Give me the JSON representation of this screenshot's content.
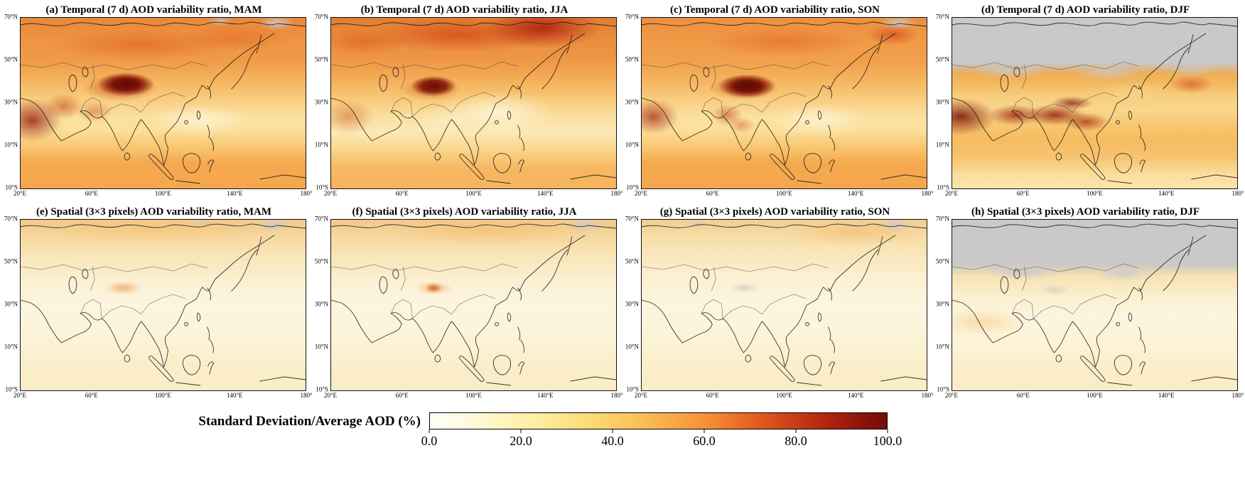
{
  "figure": {
    "description": "Eight-panel seasonal map figure of AOD variability ratio over Asia with a shared horizontal colorbar"
  },
  "axes": {
    "yticks": [
      "70°N",
      "50°N",
      "30°N",
      "10°N",
      "10°S"
    ],
    "xticks": [
      "20°E",
      "60°E",
      "100°E",
      "140°E",
      "180°"
    ]
  },
  "panels": [
    {
      "key": "a",
      "title": "(a) Temporal (7 d) AOD variability ratio, MAM"
    },
    {
      "key": "b",
      "title": "(b) Temporal (7 d) AOD variability ratio, JJA"
    },
    {
      "key": "c",
      "title": "(c) Temporal (7 d) AOD variability ratio, SON"
    },
    {
      "key": "d",
      "title": "(d) Temporal (7 d) AOD variability ratio, DJF"
    },
    {
      "key": "e",
      "title": "(e) Spatial (3×3 pixels) AOD variability ratio, MAM"
    },
    {
      "key": "f",
      "title": "(f) Spatial (3×3 pixels) AOD variability ratio, JJA"
    },
    {
      "key": "g",
      "title": "(g) Spatial (3×3 pixels) AOD variability ratio, SON"
    },
    {
      "key": "h",
      "title": "(h) Spatial (3×3 pixels) AOD variability ratio, DJF"
    }
  ],
  "colorbar": {
    "label": "Standard Deviation/Average AOD (%)",
    "ticks": [
      "0.0",
      "20.0",
      "40.0",
      "60.0",
      "80.0",
      "100.0"
    ],
    "colors": [
      "#fffef6",
      "#fef0ae",
      "#fcd871",
      "#f9ad47",
      "#f07529",
      "#bb2e10",
      "#760d08"
    ],
    "nodata_color": "#c9c9c9"
  },
  "chart_data": {
    "type": "heatmap",
    "layout": "2 rows x 4 columns of geographic maps sharing one horizontal colorbar",
    "x": {
      "label": "longitude",
      "range_deg_east": [
        20,
        180
      ],
      "ticks": [
        "20°E",
        "60°E",
        "100°E",
        "140°E",
        "180°"
      ]
    },
    "y": {
      "label": "latitude",
      "range_deg_north": [
        -10,
        70
      ],
      "ticks": [
        "70°N",
        "50°N",
        "30°N",
        "10°N",
        "10°S"
      ]
    },
    "colorbar": {
      "label": "Standard Deviation/Average AOD (%)",
      "range": [
        0,
        100
      ],
      "tick_values": [
        0.0,
        20.0,
        40.0,
        60.0,
        80.0,
        100.0
      ]
    },
    "panels": [
      {
        "label": "(a)",
        "quantity": "Temporal (7 d) AOD variability ratio",
        "season": "MAM",
        "features": "high values (60-100%) over Taklamakan/Tarim Basin, Middle East and Arabian Peninsula; moderate (30-50%) over Siberia and tropical oceans; gray no-data patches near Arctic"
      },
      {
        "label": "(b)",
        "quantity": "Temporal (7 d) AOD variability ratio",
        "season": "JJA",
        "features": "very high values over northeastern Siberia; dark maximum at Tarim Basin; pale low values (10-25%) over eastern China"
      },
      {
        "label": "(c)",
        "quantity": "Temporal (7 d) AOD variability ratio",
        "season": "SON",
        "features": "dark maximum at Tarim Basin; elevated values over India and Middle East; orange mid-high latitudes"
      },
      {
        "label": "(d)",
        "quantity": "Temporal (7 d) AOD variability ratio",
        "season": "DJF",
        "features": "large gray no-data region over high latitudes; very high values (70-100%) across Middle East, India and Southeast Asia"
      },
      {
        "label": "(e)",
        "quantity": "Spatial (3×3 pixels) AOD variability ratio",
        "season": "MAM",
        "features": "mostly low values (5-25%); faint orange maximum near Tarim Basin"
      },
      {
        "label": "(f)",
        "quantity": "Spatial (3×3 pixels) AOD variability ratio",
        "season": "JJA",
        "features": "mostly low values; small orange maximum at Tarim Basin; slight enhancement over Siberia"
      },
      {
        "label": "(g)",
        "quantity": "Spatial (3×3 pixels) AOD variability ratio",
        "season": "SON",
        "features": "mostly low values; grayish smudge near Tarim Basin"
      },
      {
        "label": "(h)",
        "quantity": "Spatial (3×3 pixels) AOD variability ratio",
        "season": "DJF",
        "features": "gray no-data region over high latitudes; low values elsewhere"
      }
    ]
  }
}
